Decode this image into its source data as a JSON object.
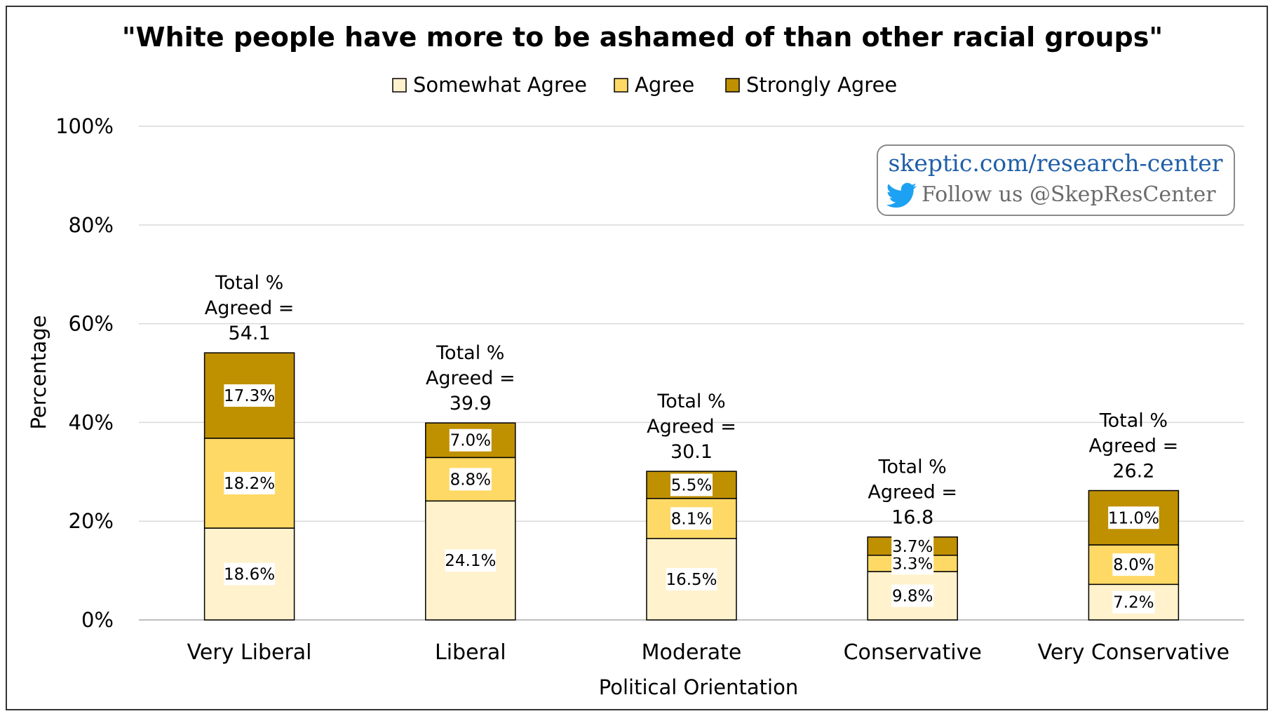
{
  "chart_data": {
    "type": "bar",
    "stacked": true,
    "title": "\"White people have more to be ashamed of than other racial groups\"",
    "xlabel": "Political Orientation",
    "ylabel": "Percentage",
    "ylim": [
      0,
      100
    ],
    "yticks": [
      "0%",
      "20%",
      "40%",
      "60%",
      "80%",
      "100%"
    ],
    "grid": true,
    "legend_position": "top",
    "categories": [
      "Very Liberal",
      "Liberal",
      "Moderate",
      "Conservative",
      "Very Conservative"
    ],
    "series": [
      {
        "name": "Somewhat Agree",
        "color": "#fff2cc",
        "values": [
          18.6,
          24.1,
          16.5,
          9.8,
          7.2
        ],
        "labels": [
          "18.6%",
          "24.1%",
          "16.5%",
          "9.8%",
          "7.2%"
        ]
      },
      {
        "name": "Agree",
        "color": "#ffd966",
        "values": [
          18.2,
          8.8,
          8.1,
          3.3,
          8.0
        ],
        "labels": [
          "18.2%",
          "8.8%",
          "8.1%",
          "3.3%",
          "8.0%"
        ]
      },
      {
        "name": "Strongly Agree",
        "color": "#bf9000",
        "values": [
          17.3,
          7.0,
          5.5,
          3.7,
          11.0
        ],
        "labels": [
          "17.3%",
          "7.0%",
          "5.5%",
          "3.7%",
          "11.0%"
        ]
      }
    ],
    "totals": [
      {
        "line1": "Total %",
        "line2": "Agreed =",
        "value": "54.1"
      },
      {
        "line1": "Total %",
        "line2": "Agreed =",
        "value": "39.9"
      },
      {
        "line1": "Total %",
        "line2": "Agreed =",
        "value": "30.1"
      },
      {
        "line1": "Total %",
        "line2": "Agreed =",
        "value": "16.8"
      },
      {
        "line1": "Total %",
        "line2": "Agreed =",
        "value": "26.2"
      }
    ]
  },
  "watermark": {
    "site": "skeptic.com/research-center",
    "follow": "Follow us @SkepResCenter",
    "icon": "twitter-bird-icon",
    "icon_color": "#1da1f2"
  }
}
